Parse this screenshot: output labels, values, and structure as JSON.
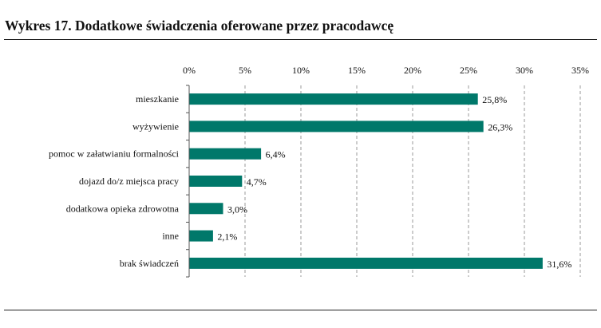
{
  "title": "Wykres 17. Dodatkowe świadczenia oferowane przez pracodawcę",
  "colors": {
    "bar": "#00786a",
    "grid": "#9a9a9a",
    "axis": "#555555"
  },
  "chart_data": {
    "type": "bar",
    "orientation": "horizontal",
    "categories": [
      "mieszkanie",
      "wyżywienie",
      "pomoc w załatwianiu formalności",
      "dojazd do/z miejsca pracy",
      "dodatkowa opieka zdrowotna",
      "inne",
      "brak świadczeń"
    ],
    "values": [
      25.8,
      26.3,
      6.4,
      4.7,
      3.0,
      2.1,
      31.6
    ],
    "value_labels": [
      "25,8%",
      "26,3%",
      "6,4%",
      "4,7%",
      "3,0%",
      "2,1%",
      "31,6%"
    ],
    "xlim": [
      0,
      35
    ],
    "xticks": [
      0,
      5,
      10,
      15,
      20,
      25,
      30,
      35
    ],
    "xtick_labels": [
      "0%",
      "5%",
      "10%",
      "15%",
      "20%",
      "25%",
      "30%",
      "35%"
    ],
    "x_axis_position": "top",
    "grid": "vertical dashed",
    "legend": "none"
  }
}
